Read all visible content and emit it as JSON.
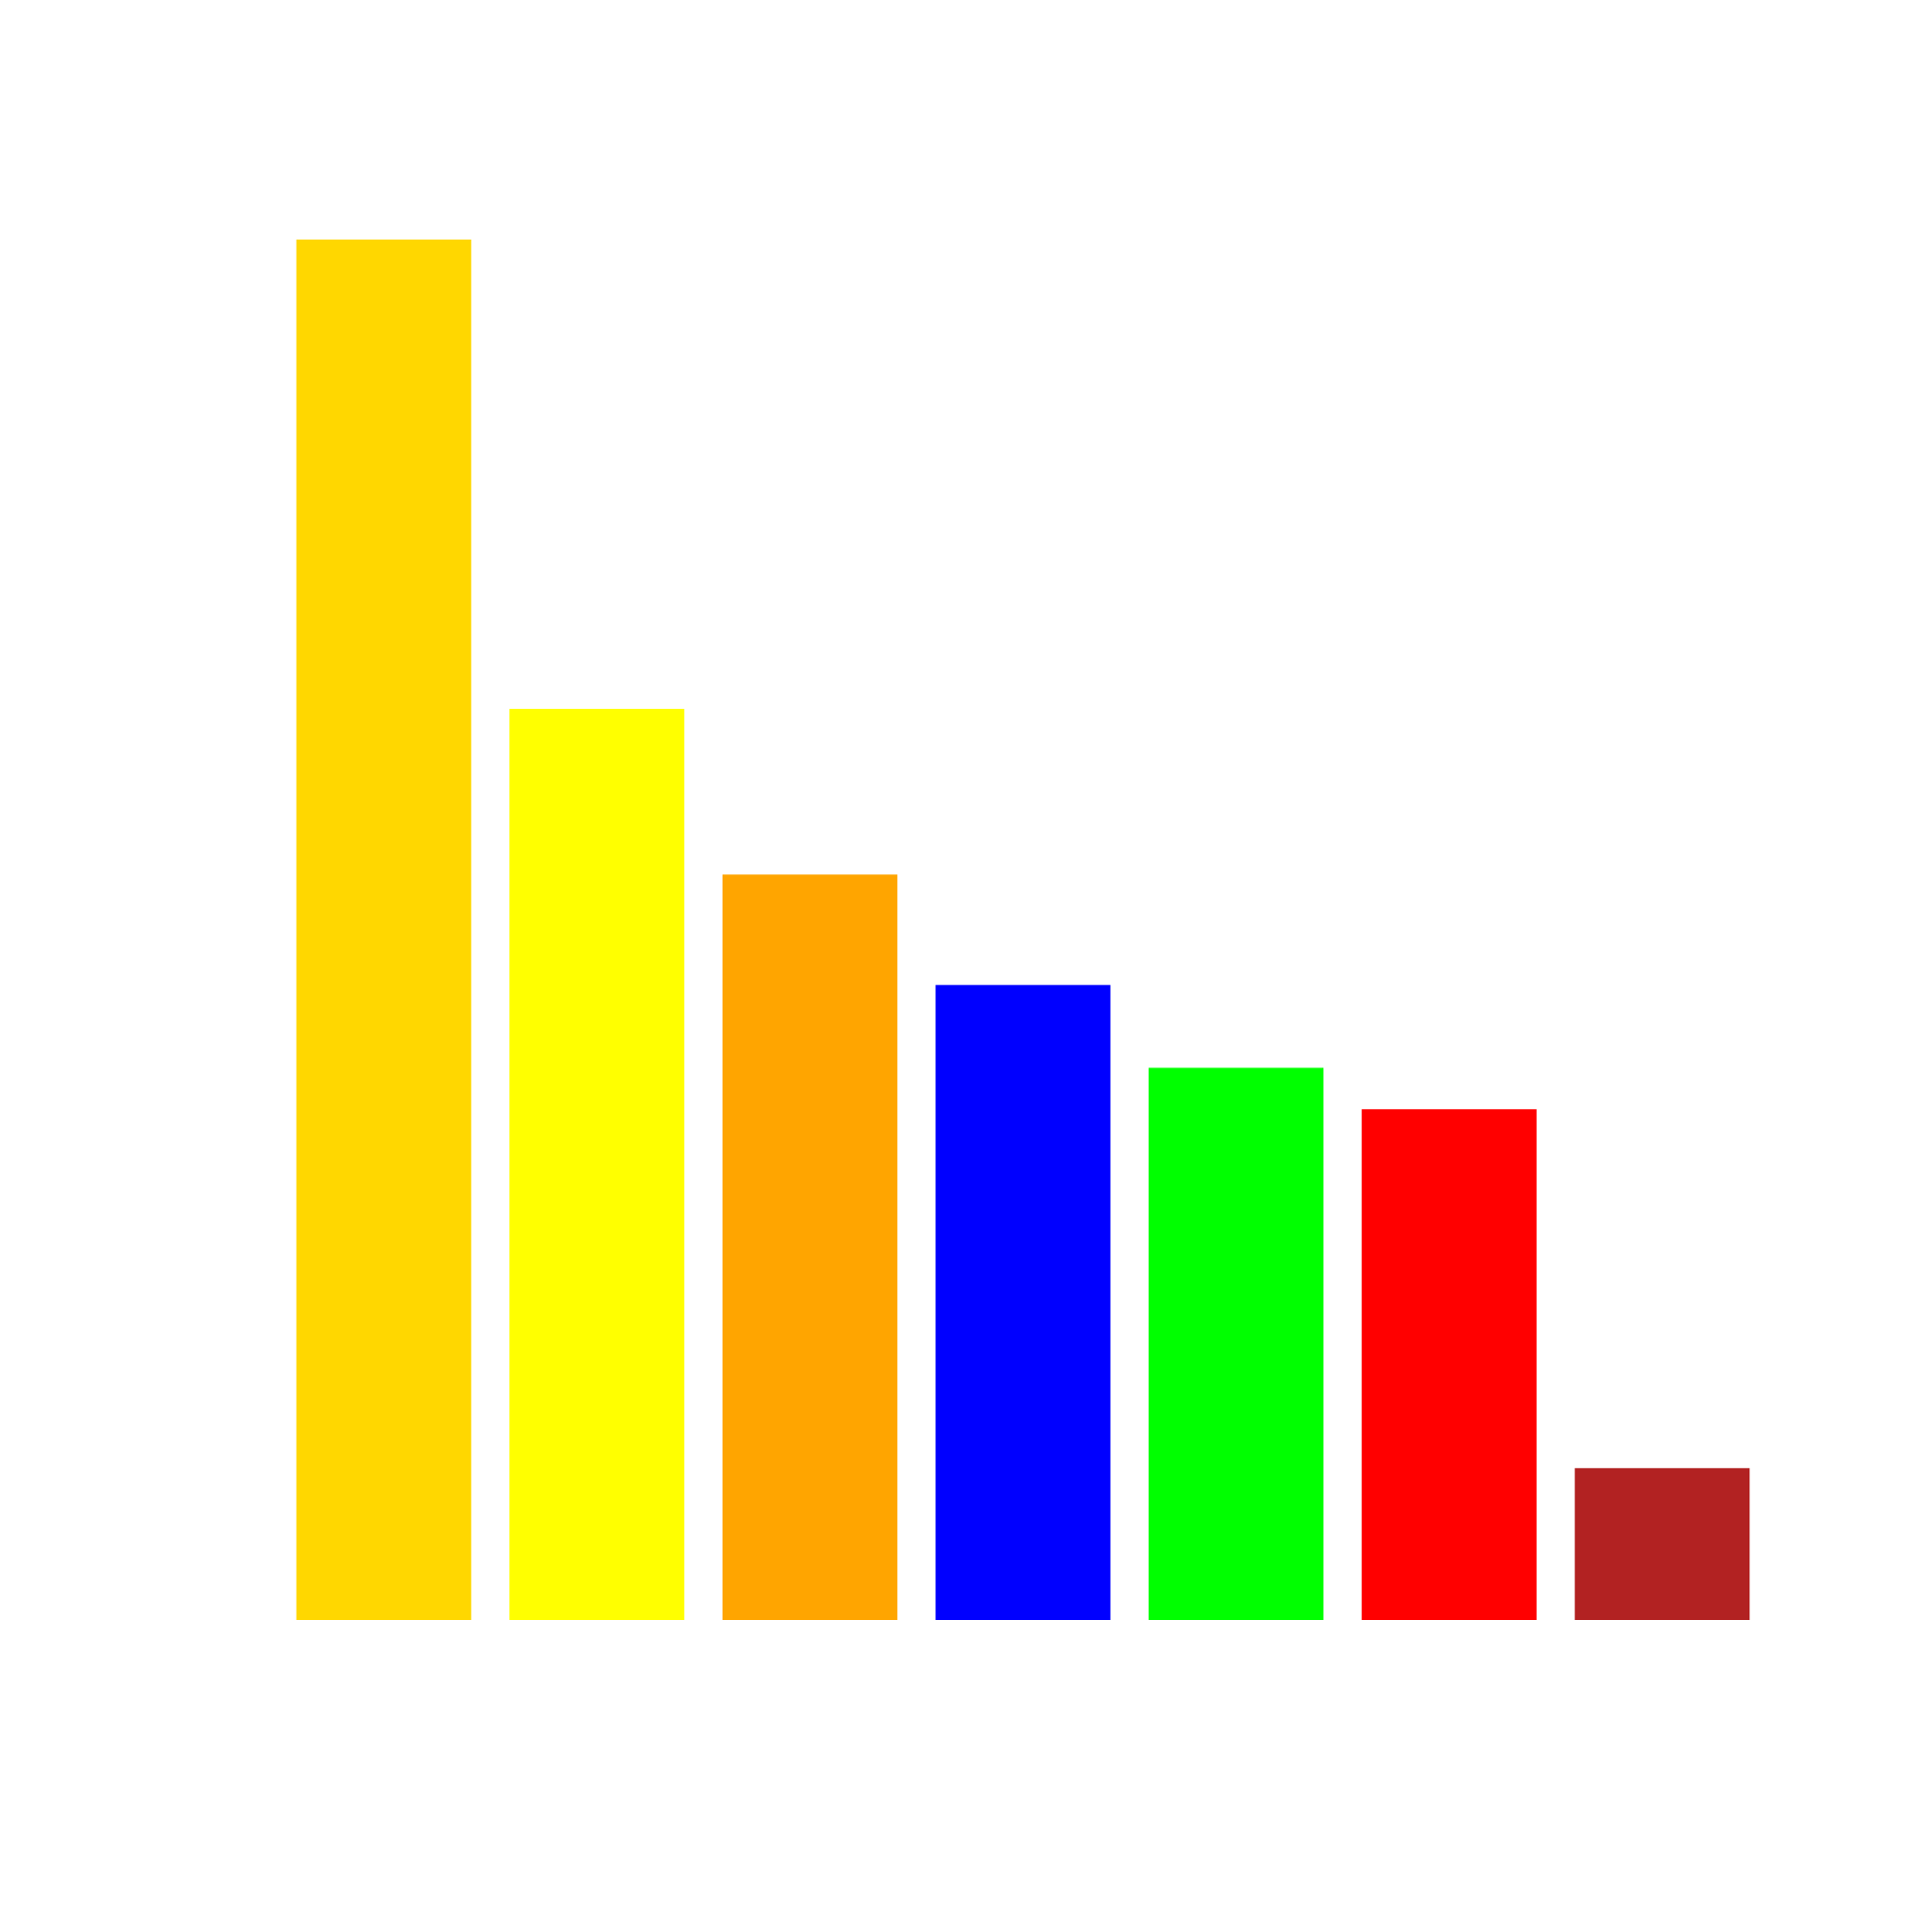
{
  "chart_data": {
    "type": "bar",
    "categories": [
      null,
      null,
      null,
      null,
      null,
      null,
      null
    ],
    "values": [
      100,
      66,
      54,
      46,
      40,
      37,
      11
    ],
    "colors": [
      "#ffd700",
      "#ffff00",
      "#ffa500",
      "#0000ff",
      "#00ff00",
      "#ff0000",
      "#b22222"
    ],
    "ylim": [
      0,
      100
    ]
  }
}
